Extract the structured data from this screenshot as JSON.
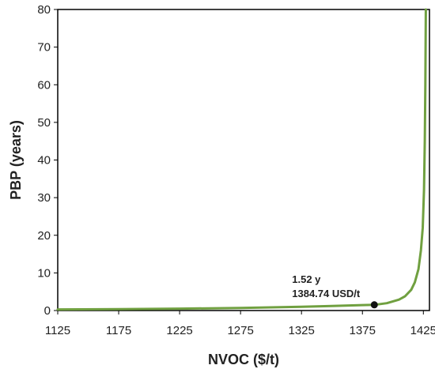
{
  "chart_data": {
    "type": "line",
    "title": "",
    "xlabel": "NVOC ($/t)",
    "ylabel": "PBP (years)",
    "xlim": [
      1125,
      1430
    ],
    "ylim": [
      0,
      80
    ],
    "x_ticks": [
      1125,
      1175,
      1225,
      1275,
      1325,
      1375,
      1425
    ],
    "y_ticks": [
      0,
      10,
      20,
      30,
      40,
      50,
      60,
      70,
      80
    ],
    "grid": false,
    "legend": "none",
    "series": [
      {
        "color": "#70a040",
        "x": [
          1125,
          1175,
          1225,
          1275,
          1325,
          1350,
          1375,
          1384.74,
          1395,
          1405,
          1410,
          1415,
          1418,
          1421,
          1423,
          1424.5,
          1425.5,
          1426.2,
          1426.6,
          1427
        ],
        "y": [
          0.3,
          0.38,
          0.5,
          0.68,
          0.98,
          1.2,
          1.45,
          1.52,
          1.95,
          2.9,
          3.8,
          5.5,
          7.5,
          11,
          16,
          22,
          32,
          45,
          60,
          80
        ]
      }
    ],
    "highlight_point": {
      "x": 1384.74,
      "y": 1.52,
      "color": "#111111",
      "label_line1": "1.52 y",
      "label_line2": "1384.74  USD/t"
    }
  }
}
